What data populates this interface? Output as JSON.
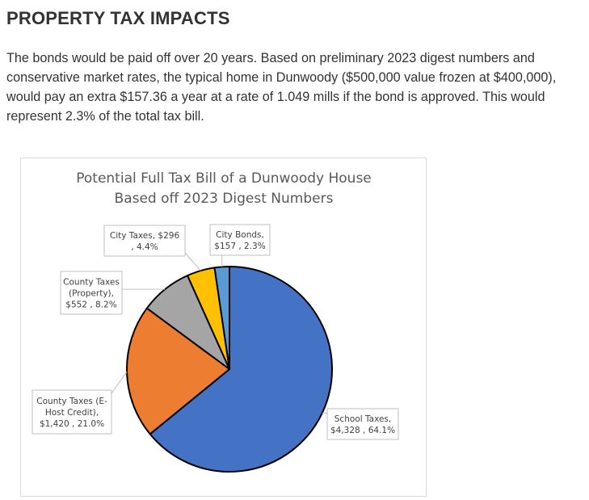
{
  "page": {
    "heading": "PROPERTY TAX IMPACTS",
    "paragraph": "The bonds would be paid off over 20 years. Based on preliminary 2023 digest numbers and conservative market rates, the typical home in Dunwoody ($500,000 value frozen at $400,000), would pay an extra $157.36 a year at a rate of 1.049 mills if the bond is approved. This would represent 2.3% of the total tax bill."
  },
  "chart_data": {
    "type": "pie",
    "title": [
      "Potential Full Tax Bill of a Dunwoody House",
      "Based off 2023 Digest Numbers"
    ],
    "slices": [
      {
        "name": "School Taxes",
        "value": 4328,
        "percent": "64.1%",
        "color": "#4472C4",
        "label_lines": [
          "School Taxes,",
          "$4,328 , 64.1%"
        ]
      },
      {
        "name": "County Taxes (E-Host Credit)",
        "value": 1420,
        "percent": "21.0%",
        "color": "#ED7D31",
        "label_lines": [
          "County Taxes (E-",
          "Host Credit),",
          "$1,420 , 21.0%"
        ]
      },
      {
        "name": "County Taxes (Property)",
        "value": 552,
        "percent": "8.2%",
        "color": "#A5A5A5",
        "label_lines": [
          "County Taxes",
          "(Property),",
          "$552 , 8.2%"
        ]
      },
      {
        "name": "City Taxes",
        "value": 296,
        "percent": "4.4%",
        "color": "#FFC000",
        "label_lines": [
          "City Taxes,  $296",
          ", 4.4%"
        ]
      },
      {
        "name": "City Bonds",
        "value": 157,
        "percent": "2.3%",
        "color": "#5B9BD5",
        "label_lines": [
          "City Bonds,",
          "$157 , 2.3%"
        ]
      }
    ]
  }
}
